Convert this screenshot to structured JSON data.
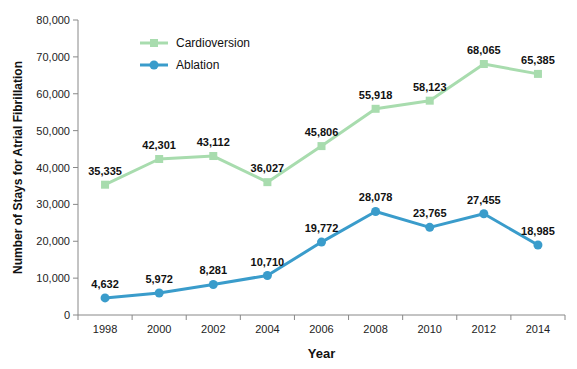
{
  "chart_data": {
    "type": "line",
    "x_label": "Year",
    "y_label": "Number of Stays for Atrial Fibrillation",
    "categories": [
      "1998",
      "2000",
      "2002",
      "2004",
      "2006",
      "2008",
      "2010",
      "2012",
      "2014"
    ],
    "series": [
      {
        "name": "Cardioversion",
        "color": "#a8dcae",
        "marker": "square",
        "values": [
          35335,
          42301,
          43112,
          36027,
          45806,
          55918,
          58123,
          68065,
          65385
        ],
        "value_labels": [
          "35,335",
          "42,301",
          "43,112",
          "36,027",
          "45,806",
          "55,918",
          "58,123",
          "68,065",
          "65,385"
        ]
      },
      {
        "name": "Ablation",
        "color": "#3a9ccb",
        "marker": "circle",
        "values": [
          4632,
          5972,
          8281,
          10710,
          19772,
          28078,
          23765,
          27455,
          18985
        ],
        "value_labels": [
          "4,632",
          "5,972",
          "8,281",
          "10,710",
          "19,772",
          "28,078",
          "23,765",
          "27,455",
          "18,985"
        ]
      }
    ],
    "ylim": [
      0,
      80000
    ],
    "yticks": [
      0,
      {
        "value": 10000,
        "label": "10,000"
      },
      {
        "value": 20000,
        "label": "20,000"
      },
      {
        "value": 30000,
        "label": "30,000"
      },
      {
        "value": 40000,
        "label": "40,000"
      },
      {
        "value": 50000,
        "label": "50,000"
      },
      {
        "value": 60000,
        "label": "60,000"
      },
      {
        "value": 70000,
        "label": "70,000"
      },
      {
        "value": 80000,
        "label": "80,000"
      }
    ],
    "grid": false,
    "legend": "top-left",
    "data_labels": true
  }
}
